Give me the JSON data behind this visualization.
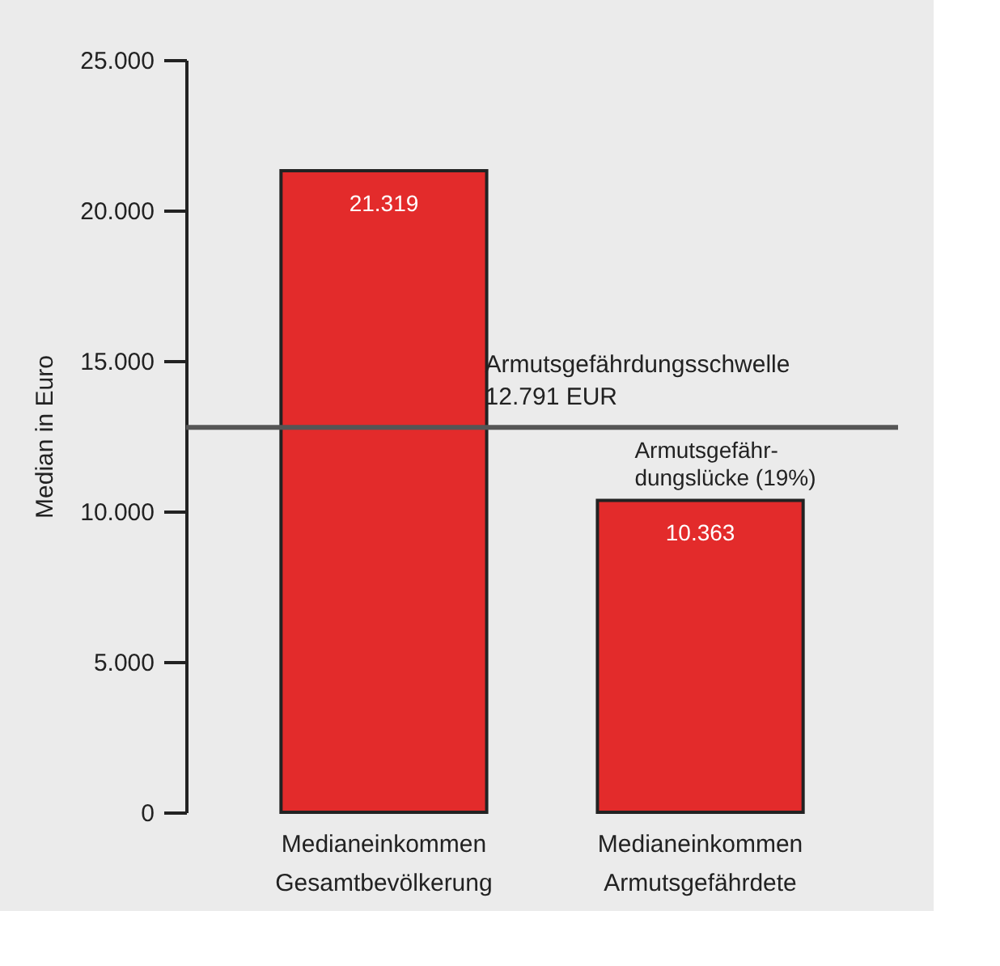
{
  "chart_data": {
    "type": "bar",
    "ylabel": "Median in Euro",
    "categories": [
      "Medianeinkommen\nGesamtbevölkerung",
      "Medianeinkommen\nArmutsgefährdete"
    ],
    "values": [
      21319,
      10363
    ],
    "value_labels": [
      "21.319",
      "10.363"
    ],
    "color": "#e32b2b",
    "ylim": [
      0,
      25000
    ],
    "yticks": [
      {
        "value": 0,
        "label": "0"
      },
      {
        "value": 5000,
        "label": "5.000"
      },
      {
        "value": 10000,
        "label": "10.000"
      },
      {
        "value": 15000,
        "label": "15.000"
      },
      {
        "value": 20000,
        "label": "20.000"
      },
      {
        "value": 25000,
        "label": "25.000"
      }
    ],
    "ref_lines": [
      {
        "axis": "y",
        "value": 12791,
        "label": "Armutsgefährdungsschwelle\n12.791 EUR",
        "color": "#555555"
      }
    ],
    "annotations": [
      "Armutsgefähr-\ndungslücke (19%)"
    ],
    "grid": false
  }
}
